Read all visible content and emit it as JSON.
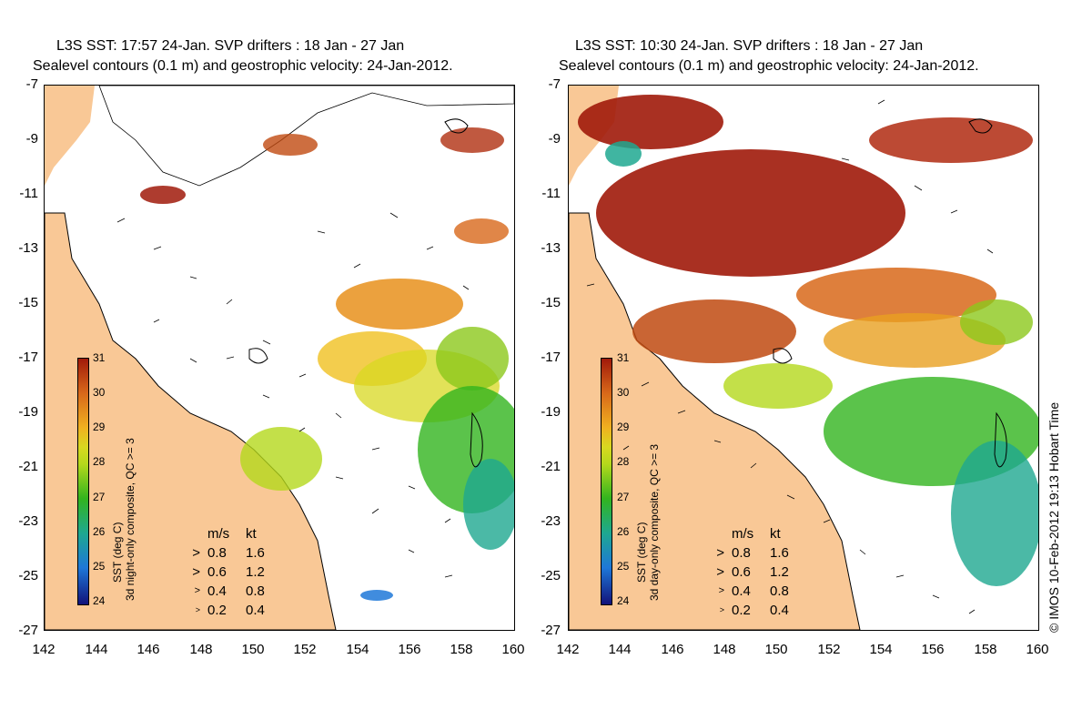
{
  "panels": [
    {
      "title_line1": "L3S SST: 17:57 24-Jan. SVP drifters : 18 Jan - 27 Jan",
      "title_line2": "Sealevel contours (0.1 m) and geostrophic velocity: 24-Jan-2012.",
      "colorbar_label": "SST (deg C)",
      "colorbar_sublabel": "3d night-only composite, QC >= 3"
    },
    {
      "title_line1": "L3S SST: 10:30 24-Jan. SVP drifters : 18 Jan - 27 Jan",
      "title_line2": "Sealevel contours (0.1 m) and geostrophic velocity: 24-Jan-2012.",
      "colorbar_label": "SST (deg C)",
      "colorbar_sublabel": "3d day-only composite, QC >= 3"
    }
  ],
  "y_ticks": [
    "-7",
    "-9",
    "-11",
    "-13",
    "-15",
    "-17",
    "-19",
    "-21",
    "-23",
    "-25",
    "-27"
  ],
  "x_ticks": [
    "142",
    "144",
    "146",
    "148",
    "150",
    "152",
    "154",
    "156",
    "158",
    "160"
  ],
  "colorbar_ticks": [
    "31",
    "30",
    "29",
    "28",
    "27",
    "26",
    "25",
    "24"
  ],
  "velocity_legend": {
    "header_ms": "m/s",
    "header_kt": "kt",
    "rows": [
      {
        "ms": "0.8",
        "kt": "1.6"
      },
      {
        "ms": "0.6",
        "kt": "1.2"
      },
      {
        "ms": "0.4",
        "kt": "0.8"
      },
      {
        "ms": "0.2",
        "kt": "0.4"
      }
    ]
  },
  "copyright": "© IMOS 10-Feb-2012 19:13 Hobart Time",
  "colors": {
    "land": "#f9c896",
    "sst_31": "#a01a0a",
    "sst_30": "#d8681a",
    "sst_29": "#f0b020",
    "sst_28": "#b4d81c",
    "sst_27": "#32b41e",
    "sst_26": "#1ea890",
    "sst_25": "#1e78d8",
    "sst_24": "#12127a"
  }
}
